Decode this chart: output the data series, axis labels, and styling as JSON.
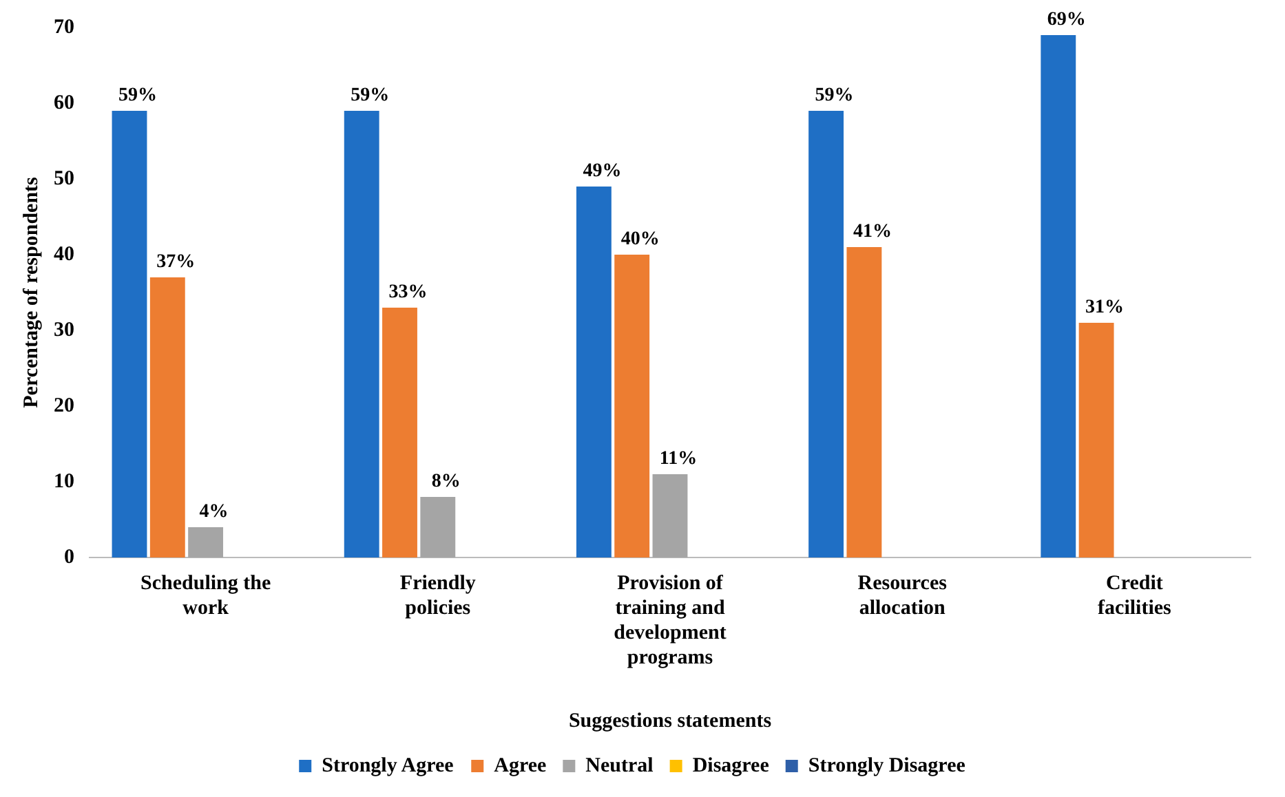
{
  "chart_data": {
    "type": "bar",
    "xlabel": "Suggestions statements",
    "ylabel": "Percentage of respondents",
    "categories": [
      "Scheduling the work",
      "Friendly policies",
      "Provision of training and development programs",
      "Resources allocation",
      "Credit facilities"
    ],
    "series": [
      {
        "name": "Strongly Agree",
        "color": "#1f6fc5",
        "values": [
          59,
          59,
          49,
          59,
          69
        ],
        "value_labels": [
          "59%",
          "59%",
          "49%",
          "59%",
          "69%"
        ]
      },
      {
        "name": "Agree",
        "color": "#ed7d31",
        "values": [
          37,
          33,
          40,
          41,
          31
        ],
        "value_labels": [
          "37%",
          "33%",
          "40%",
          "41%",
          "31%"
        ]
      },
      {
        "name": "Neutral",
        "color": "#a5a5a5",
        "values": [
          4,
          8,
          11,
          0,
          0
        ],
        "value_labels": [
          "4%",
          "8%",
          "11%",
          null,
          null
        ]
      },
      {
        "name": "Disagree",
        "color": "#ffc000",
        "values": [
          0,
          0,
          0,
          0,
          0
        ]
      },
      {
        "name": "Strongly Disagree",
        "color": "#2e5fa8",
        "values": [
          0,
          0,
          0,
          0,
          0
        ]
      }
    ],
    "ylim": [
      0,
      70
    ],
    "yticks": [
      0,
      10,
      20,
      30,
      40,
      50,
      60,
      70
    ],
    "grid": false,
    "legend": "bottom"
  }
}
